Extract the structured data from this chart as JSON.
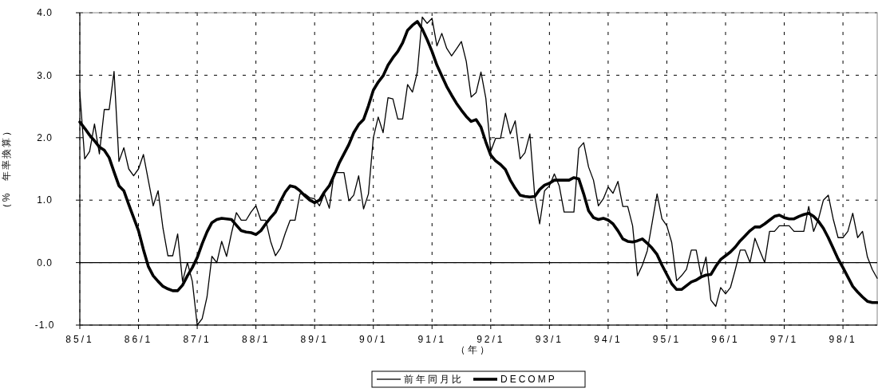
{
  "chart_data": {
    "type": "line",
    "xlabel": "（年）",
    "ylabel": "（%　年率換算）",
    "categories": [
      "85/1",
      null,
      null,
      null,
      null,
      null,
      null,
      null,
      null,
      null,
      null,
      null,
      "86/1",
      null,
      null,
      null,
      null,
      null,
      null,
      null,
      null,
      null,
      null,
      null,
      "87/1",
      null,
      null,
      null,
      null,
      null,
      null,
      null,
      null,
      null,
      null,
      null,
      "88/1",
      null,
      null,
      null,
      null,
      null,
      null,
      null,
      null,
      null,
      null,
      null,
      "89/1",
      null,
      null,
      null,
      null,
      null,
      null,
      null,
      null,
      null,
      null,
      null,
      "90/1",
      null,
      null,
      null,
      null,
      null,
      null,
      null,
      null,
      null,
      null,
      null,
      "91/1",
      null,
      null,
      null,
      null,
      null,
      null,
      null,
      null,
      null,
      null,
      null,
      "92/1",
      null,
      null,
      null,
      null,
      null,
      null,
      null,
      null,
      null,
      null,
      null,
      "93/1",
      null,
      null,
      null,
      null,
      null,
      null,
      null,
      null,
      null,
      null,
      null,
      "94/1",
      null,
      null,
      null,
      null,
      null,
      null,
      null,
      null,
      null,
      null,
      null,
      "95/1",
      null,
      null,
      null,
      null,
      null,
      null,
      null,
      null,
      null,
      null,
      null,
      "96/1",
      null,
      null,
      null,
      null,
      null,
      null,
      null,
      null,
      null,
      null,
      null,
      "97/1",
      null,
      null,
      null,
      null,
      null,
      null,
      null,
      null,
      null,
      null,
      null,
      "98/1",
      null,
      null,
      null,
      null,
      null,
      null,
      null
    ],
    "series": [
      {
        "name": "前年同月比",
        "color": "#000000",
        "values": [
          2.73,
          1.66,
          1.78,
          2.22,
          1.74,
          2.45,
          2.45,
          3.06,
          1.62,
          1.84,
          1.5,
          1.39,
          1.5,
          1.73,
          1.32,
          0.91,
          1.15,
          0.55,
          0.11,
          0.11,
          0.46,
          -0.3,
          0,
          -0.3,
          -1.0,
          -0.9,
          -0.55,
          0.1,
          0,
          0.34,
          0.1,
          0.47,
          0.8,
          0.68,
          0.68,
          0.81,
          0.91,
          0.68,
          0.68,
          0.34,
          0.11,
          0.23,
          0.47,
          0.68,
          0.68,
          1.1,
          1.1,
          1.04,
          1.02,
          0.91,
          1.1,
          0.87,
          1.44,
          1.44,
          1.44,
          0.99,
          1.08,
          1.39,
          0.86,
          1.1,
          2.0,
          2.33,
          2.08,
          2.64,
          2.62,
          2.3,
          2.3,
          2.85,
          2.73,
          3.05,
          3.93,
          3.83,
          3.91,
          3.47,
          3.67,
          3.43,
          3.31,
          3.42,
          3.54,
          3.22,
          2.65,
          2.72,
          3.05,
          2.63,
          1.78,
          1.99,
          1.99,
          2.39,
          2.06,
          2.27,
          1.66,
          1.76,
          2.06,
          1.06,
          0.62,
          1.15,
          1.23,
          1.42,
          1.23,
          0.81,
          0.81,
          0.81,
          1.83,
          1.92,
          1.53,
          1.32,
          0.91,
          1.02,
          1.21,
          1.11,
          1.3,
          0.9,
          0.9,
          0.59,
          -0.21,
          -0.04,
          0.19,
          0.64,
          1.1,
          0.7,
          0.59,
          0.32,
          -0.29,
          -0.21,
          -0.11,
          0.2,
          0.2,
          -0.21,
          0.09,
          -0.6,
          -0.7,
          -0.4,
          -0.5,
          -0.4,
          -0.11,
          0.2,
          0.2,
          0,
          0.39,
          0.19,
          0,
          0.5,
          0.5,
          0.59,
          0.59,
          0.59,
          0.5,
          0.5,
          0.5,
          0.9,
          0.5,
          0.7,
          1.0,
          1.08,
          0.7,
          0.4,
          0.4,
          0.5,
          0.79,
          0.4,
          0.5,
          0.09,
          -0.11,
          -0.25
        ]
      },
      {
        "name": "DECOMP",
        "color": "#000000",
        "values": [
          2.25,
          2.15,
          2.04,
          1.95,
          1.85,
          1.8,
          1.68,
          1.45,
          1.23,
          1.15,
          0.93,
          0.72,
          0.51,
          0.21,
          -0.06,
          -0.21,
          -0.3,
          -0.38,
          -0.42,
          -0.45,
          -0.45,
          -0.36,
          -0.21,
          -0.08,
          0.08,
          0.3,
          0.49,
          0.64,
          0.69,
          0.71,
          0.7,
          0.69,
          0.6,
          0.51,
          0.49,
          0.48,
          0.45,
          0.51,
          0.62,
          0.72,
          0.81,
          0.98,
          1.13,
          1.23,
          1.21,
          1.15,
          1.07,
          1.0,
          0.96,
          1.0,
          1.13,
          1.23,
          1.4,
          1.59,
          1.74,
          1.89,
          2.08,
          2.21,
          2.29,
          2.51,
          2.76,
          2.89,
          2.99,
          3.16,
          3.28,
          3.38,
          3.52,
          3.72,
          3.8,
          3.86,
          3.74,
          3.57,
          3.38,
          3.16,
          2.99,
          2.82,
          2.68,
          2.55,
          2.44,
          2.34,
          2.26,
          2.29,
          2.17,
          1.93,
          1.72,
          1.63,
          1.57,
          1.49,
          1.32,
          1.19,
          1.08,
          1.06,
          1.05,
          1.06,
          1.17,
          1.24,
          1.27,
          1.32,
          1.32,
          1.32,
          1.32,
          1.36,
          1.34,
          1.1,
          0.83,
          0.72,
          0.69,
          0.71,
          0.68,
          0.62,
          0.51,
          0.38,
          0.34,
          0.33,
          0.35,
          0.38,
          0.31,
          0.23,
          0.13,
          -0.04,
          -0.19,
          -0.34,
          -0.43,
          -0.43,
          -0.37,
          -0.31,
          -0.28,
          -0.23,
          -0.2,
          -0.19,
          -0.06,
          0.05,
          0.11,
          0.17,
          0.25,
          0.35,
          0.43,
          0.51,
          0.57,
          0.57,
          0.62,
          0.68,
          0.74,
          0.76,
          0.72,
          0.7,
          0.7,
          0.74,
          0.77,
          0.79,
          0.74,
          0.66,
          0.55,
          0.4,
          0.23,
          0.06,
          -0.08,
          -0.23,
          -0.38,
          -0.47,
          -0.55,
          -0.62,
          -0.64,
          -0.64
        ]
      }
    ],
    "ylim": [
      -1,
      4
    ],
    "yticks": [
      {
        "value": -1,
        "label": "-1.0"
      },
      {
        "value": 0,
        "label": "0.0"
      },
      {
        "value": 1,
        "label": "1.0"
      },
      {
        "value": 2,
        "label": "2.0"
      },
      {
        "value": 3,
        "label": "3.0"
      },
      {
        "value": 4,
        "label": "4.0"
      }
    ],
    "ref_lines": [
      {
        "axis": "y",
        "value": 0,
        "color": "#000000",
        "line_style": "solid"
      }
    ],
    "grid": true,
    "legend": "bottom",
    "marker": "none",
    "line_style": "solid"
  }
}
